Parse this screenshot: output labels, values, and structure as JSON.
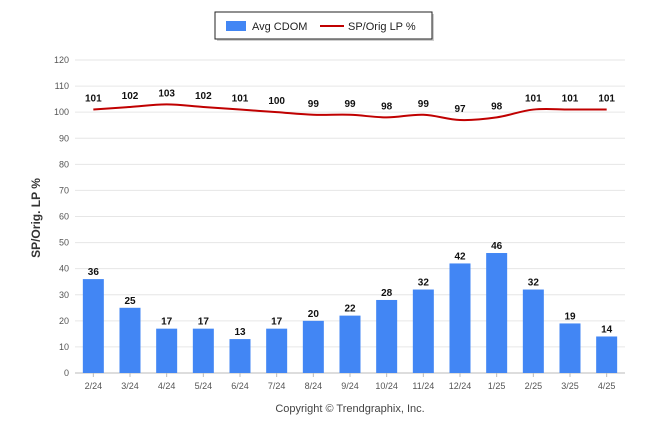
{
  "chart_data": {
    "type": "bar",
    "categories": [
      "2/24",
      "3/24",
      "4/24",
      "5/24",
      "6/24",
      "7/24",
      "8/24",
      "9/24",
      "10/24",
      "11/24",
      "12/24",
      "1/25",
      "2/25",
      "3/25",
      "4/25"
    ],
    "series": [
      {
        "name": "Avg CDOM",
        "type": "bar",
        "color": "#4286f4",
        "values": [
          36,
          25,
          17,
          17,
          13,
          17,
          20,
          22,
          28,
          32,
          42,
          46,
          32,
          19,
          14
        ]
      },
      {
        "name": "SP/Orig LP %",
        "type": "line",
        "color": "#c00000",
        "values": [
          101,
          102,
          103,
          102,
          101,
          100,
          99,
          99,
          98,
          99,
          97,
          98,
          101,
          101,
          101
        ]
      }
    ],
    "ylabel": "SP/Orig. LP %",
    "ylim": [
      0,
      120
    ],
    "yticks": [
      0,
      10,
      20,
      30,
      40,
      50,
      60,
      70,
      80,
      90,
      100,
      110,
      120
    ],
    "grid": true,
    "legend_position": "top-center",
    "footer": "Copyright © Trendgraphix, Inc."
  }
}
